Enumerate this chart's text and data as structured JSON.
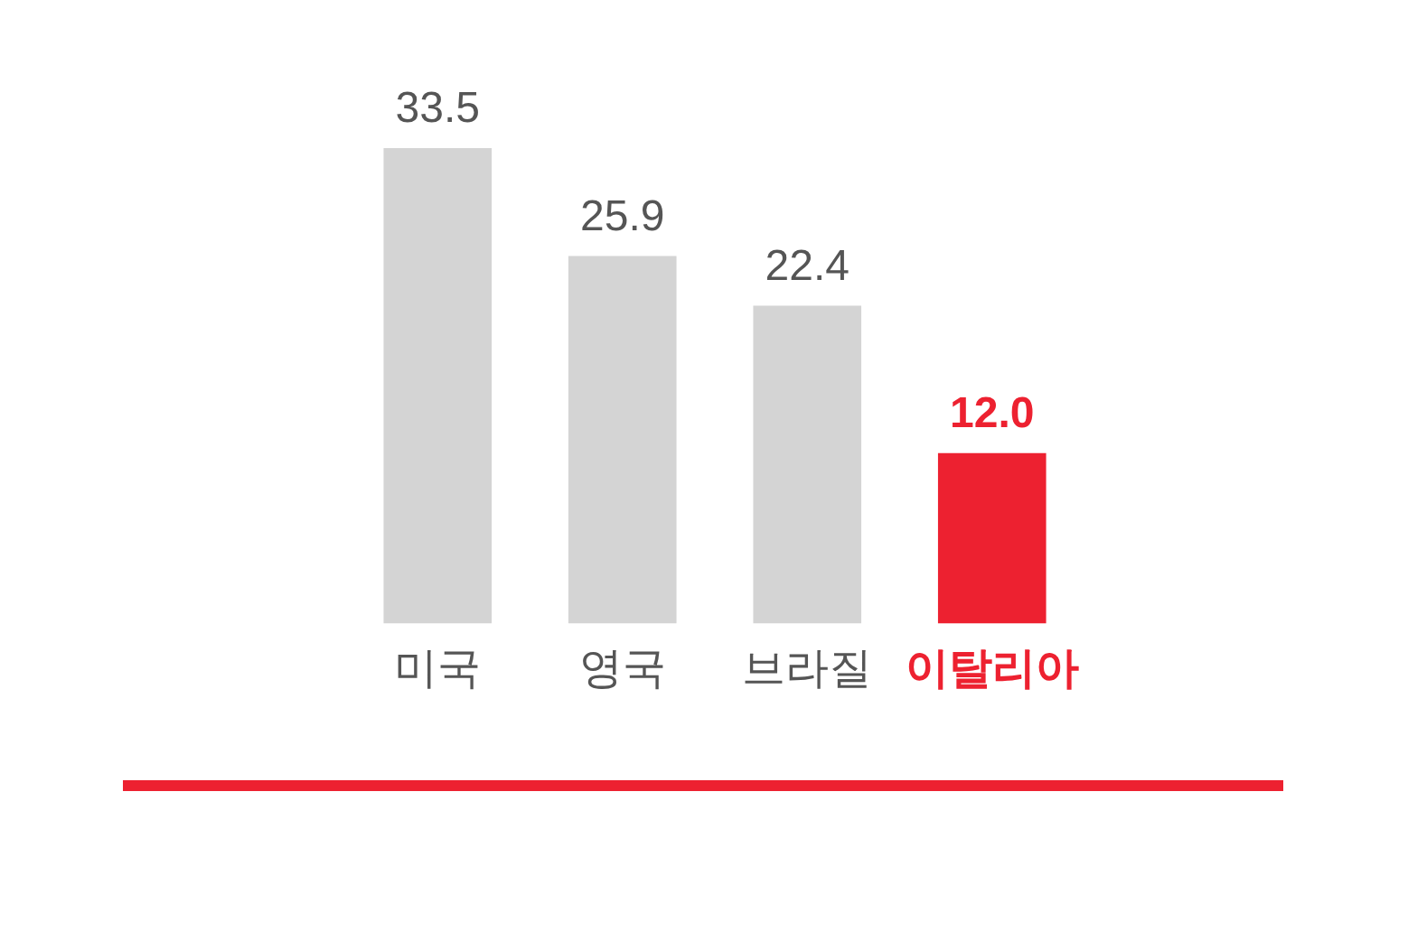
{
  "chart_data": {
    "type": "bar",
    "categories": [
      "미국",
      "영국",
      "브라질",
      "이탈리아"
    ],
    "values": [
      33.5,
      25.9,
      22.4,
      12.0
    ],
    "colors": [
      "#d4d4d4",
      "#d4d4d4",
      "#d4d4d4",
      "#ed2130"
    ],
    "value_labels": [
      "33.5",
      "25.9",
      "22.4",
      "12.0"
    ],
    "tick_labels": "x"
  }
}
